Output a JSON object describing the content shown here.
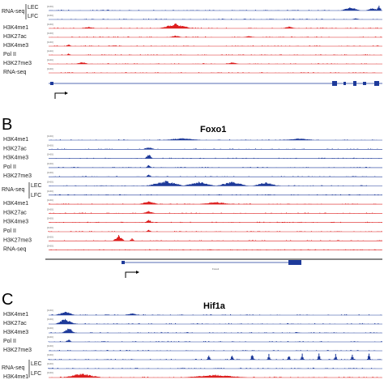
{
  "colors": {
    "blue": "#1e3a9a",
    "red": "#dd2020",
    "gene": "#1e3a9a",
    "text": "#222222"
  },
  "panels": [
    {
      "id": "A",
      "letter": "",
      "gene": "",
      "range_label": "[0-60]",
      "tracks": [
        {
          "label": "",
          "color": "blue",
          "peaks": [
            [
              0.905,
              0.03,
              0.55
            ],
            [
              0.97,
              0.02,
              0.5
            ],
            [
              0.99,
              0.008,
              0.9
            ]
          ]
        },
        {
          "label": "",
          "color": "blue",
          "peaks": [
            [
              0.92,
              0.012,
              0.2
            ]
          ]
        },
        {
          "label": "H3K4me1",
          "color": "red",
          "peaks": [
            [
              0.38,
              0.05,
              0.75
            ],
            [
              0.12,
              0.02,
              0.25
            ],
            [
              0.72,
              0.02,
              0.3
            ]
          ]
        },
        {
          "label": "H3K27ac",
          "color": "red",
          "peaks": [
            [
              0.38,
              0.02,
              0.3
            ],
            [
              0.6,
              0.02,
              0.2
            ]
          ]
        },
        {
          "label": "H3K4me3",
          "color": "red",
          "peaks": [
            [
              0.06,
              0.01,
              0.3
            ]
          ]
        },
        {
          "label": "Pol II",
          "color": "red",
          "peaks": [
            [
              0.06,
              0.008,
              0.25
            ]
          ]
        },
        {
          "label": "H3K27me3",
          "color": "red",
          "peaks": [
            [
              0.1,
              0.02,
              0.35
            ],
            [
              0.55,
              0.02,
              0.3
            ]
          ]
        },
        {
          "label": "RNA-seq",
          "color": "red",
          "peaks": []
        }
      ],
      "rna_bracket": {
        "label": "RNA-seq",
        "upper": "LEC",
        "lower": "LFC"
      }
    },
    {
      "id": "B",
      "letter": "B",
      "gene": "Foxo1",
      "range_label": "[0-60]",
      "gene_label": "Foxo1",
      "tracks": [
        {
          "label": "H3K4me1",
          "color": "blue",
          "peaks": [
            [
              0.4,
              0.06,
              0.35
            ],
            [
              0.75,
              0.05,
              0.3
            ]
          ]
        },
        {
          "label": "H3K27ac",
          "color": "blue",
          "peaks": [
            [
              0.3,
              0.02,
              0.35
            ]
          ]
        },
        {
          "label": "H3K4me3",
          "color": "blue",
          "peaks": [
            [
              0.3,
              0.012,
              0.75
            ]
          ]
        },
        {
          "label": "Pol II",
          "color": "blue",
          "peaks": [
            [
              0.3,
              0.01,
              0.45
            ]
          ]
        },
        {
          "label": "H3K27me3",
          "color": "blue",
          "peaks": [
            [
              0.3,
              0.008,
              0.5
            ]
          ]
        },
        {
          "label": "",
          "color": "blue",
          "peaks": [
            [
              0.35,
              0.06,
              0.8
            ],
            [
              0.45,
              0.05,
              0.7
            ],
            [
              0.55,
              0.05,
              0.7
            ],
            [
              0.65,
              0.04,
              0.6
            ]
          ]
        },
        {
          "label": "",
          "color": "blue",
          "peaks": []
        },
        {
          "label": "H3K4me1",
          "color": "red",
          "peaks": [
            [
              0.3,
              0.03,
              0.5
            ],
            [
              0.5,
              0.05,
              0.4
            ]
          ]
        },
        {
          "label": "H3K27ac",
          "color": "red",
          "peaks": [
            [
              0.3,
              0.02,
              0.4
            ]
          ]
        },
        {
          "label": "H3K4me3",
          "color": "red",
          "peaks": [
            [
              0.3,
              0.012,
              0.55
            ]
          ]
        },
        {
          "label": "Pol II",
          "color": "red",
          "peaks": [
            [
              0.3,
              0.01,
              0.3
            ]
          ]
        },
        {
          "label": "H3K27me3",
          "color": "red",
          "peaks": [
            [
              0.21,
              0.018,
              0.9
            ],
            [
              0.25,
              0.008,
              0.5
            ]
          ]
        },
        {
          "label": "RNA-seq",
          "color": "red",
          "peaks": []
        }
      ],
      "rna_bracket": {
        "label": "RNA-seq",
        "upper": "LEC",
        "lower": "LFC"
      }
    },
    {
      "id": "C",
      "letter": "C",
      "gene": "Hif1a",
      "range_label": "[0-60]",
      "tracks": [
        {
          "label": "H3K4me1",
          "color": "blue",
          "peaks": [
            [
              0.05,
              0.03,
              0.55
            ],
            [
              0.25,
              0.02,
              0.3
            ]
          ]
        },
        {
          "label": "H3K27ac",
          "color": "blue",
          "peaks": [
            [
              0.05,
              0.03,
              0.8
            ]
          ]
        },
        {
          "label": "H3K4me3",
          "color": "blue",
          "peaks": [
            [
              0.06,
              0.02,
              0.8
            ]
          ]
        },
        {
          "label": "Pol II",
          "color": "blue",
          "peaks": [
            [
              0.06,
              0.01,
              0.4
            ]
          ]
        },
        {
          "label": "H3K27me3",
          "color": "blue",
          "peaks": []
        },
        {
          "label": "",
          "color": "blue",
          "peaks": [
            [
              0.48,
              0.006,
              0.9
            ],
            [
              0.55,
              0.006,
              0.8
            ],
            [
              0.61,
              0.006,
              0.9
            ],
            [
              0.66,
              0.006,
              0.8
            ],
            [
              0.72,
              0.006,
              0.7
            ],
            [
              0.76,
              0.006,
              0.9
            ],
            [
              0.81,
              0.006,
              0.9
            ],
            [
              0.86,
              0.006,
              0.8
            ],
            [
              0.91,
              0.006,
              0.7
            ],
            [
              0.96,
              0.006,
              0.9
            ]
          ]
        },
        {
          "label": "",
          "color": "blue",
          "peaks": []
        },
        {
          "label": "H3K4me1",
          "color": "red",
          "peaks": [
            [
              0.1,
              0.06,
              0.6
            ],
            [
              0.5,
              0.1,
              0.4
            ]
          ]
        }
      ],
      "rna_bracket": {
        "label": "RNA-seq",
        "upper": "LEC",
        "lower": "LFC"
      }
    }
  ]
}
